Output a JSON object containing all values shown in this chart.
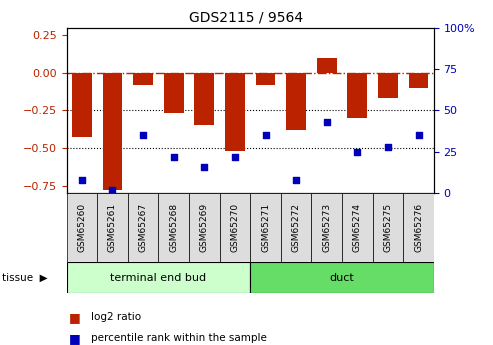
{
  "title": "GDS2115 / 9564",
  "samples": [
    "GSM65260",
    "GSM65261",
    "GSM65267",
    "GSM65268",
    "GSM65269",
    "GSM65270",
    "GSM65271",
    "GSM65272",
    "GSM65273",
    "GSM65274",
    "GSM65275",
    "GSM65276"
  ],
  "log2_ratio": [
    -0.43,
    -0.78,
    -0.08,
    -0.27,
    -0.35,
    -0.52,
    -0.08,
    -0.38,
    0.1,
    -0.3,
    -0.17,
    -0.1
  ],
  "percentile_rank": [
    8,
    2,
    35,
    22,
    16,
    22,
    35,
    8,
    43,
    25,
    28,
    35
  ],
  "tissue_groups": [
    {
      "label": "terminal end bud",
      "start": 0,
      "end": 6,
      "color": "#CCFFCC"
    },
    {
      "label": "duct",
      "start": 6,
      "end": 12,
      "color": "#66DD66"
    }
  ],
  "ylim_left": [
    -0.8,
    0.3
  ],
  "ylim_right": [
    0,
    100
  ],
  "yticks_left": [
    -0.75,
    -0.5,
    -0.25,
    0,
    0.25
  ],
  "yticks_right": [
    0,
    25,
    50,
    75,
    100
  ],
  "hline_y": 0,
  "dotted_lines": [
    -0.25,
    -0.5
  ],
  "bar_color": "#BB2200",
  "dot_color": "#0000BB",
  "bar_width": 0.65,
  "tissue_label": "tissue",
  "legend_log2": "log2 ratio",
  "legend_pct": "percentile rank within the sample",
  "background_color": "#ffffff",
  "plot_bg_color": "#ffffff",
  "xlabel_bg": "#DDDDDD",
  "right_ytick_labels": [
    "0",
    "25",
    "50",
    "75",
    "100%"
  ]
}
